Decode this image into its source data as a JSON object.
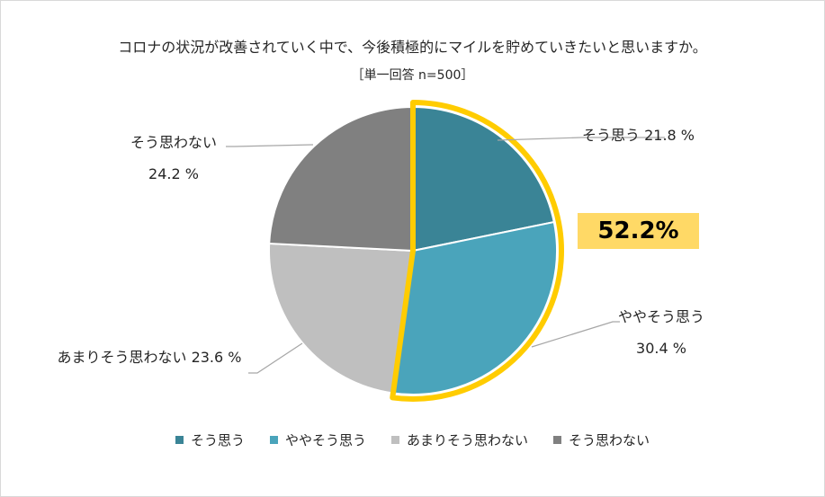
{
  "chart_data": {
    "type": "pie",
    "title": "コロナの状況が改善されていく中で、今後積極的にマイルを貯めていきたいと思いますか。",
    "subtitle": "［単一回答 n=500］",
    "categories": [
      "そう思う",
      "ややそう思う",
      "あまりそう思わない",
      "そう思わない"
    ],
    "values": [
      21.8,
      30.4,
      23.6,
      24.2
    ],
    "unit": "%",
    "colors": [
      "#3a8496",
      "#4aa4bb",
      "#bfbfbf",
      "#808080"
    ],
    "data_labels": [
      {
        "name": "そう思う",
        "value": "21.8 %"
      },
      {
        "name": "ややそう思う",
        "value": "30.4 %"
      },
      {
        "name": "あまりそう思わない",
        "value": "23.6 %"
      },
      {
        "name": "そう思わない",
        "value": "24.2 %"
      }
    ],
    "highlight": {
      "text": "52.2%",
      "color": "#ffcc00",
      "box_color": "#ffd966",
      "covers": [
        "そう思う",
        "ややそう思う"
      ]
    },
    "legend": [
      "そう思う",
      "ややそう思う",
      "あまりそう思わない",
      "そう思わない"
    ],
    "legend_position": "bottom"
  }
}
